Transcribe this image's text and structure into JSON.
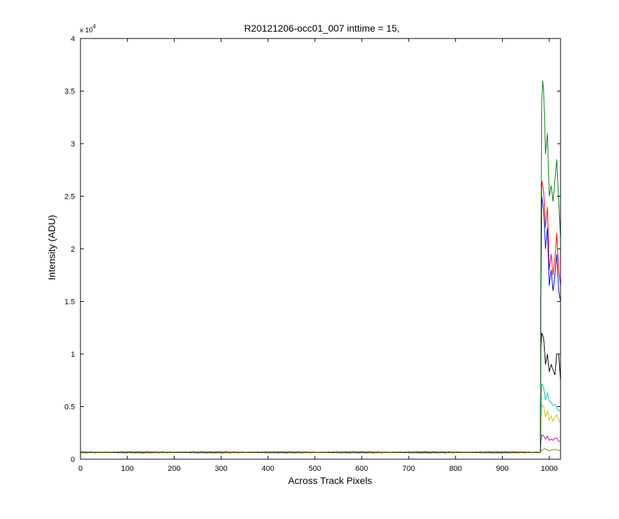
{
  "chart_data": {
    "type": "line",
    "title": "R20121206-occ01_007 inttime = 15,",
    "xlabel": "Across Track Pixels",
    "ylabel": "Intensity (ADU)",
    "y_exponent_label": "x 10",
    "y_exponent_power": "4",
    "xlim": [
      0,
      1024
    ],
    "ylim": [
      0,
      40000
    ],
    "x_ticks": [
      0,
      100,
      200,
      300,
      400,
      500,
      600,
      700,
      800,
      900,
      1000
    ],
    "y_ticks": [
      0,
      5000,
      10000,
      15000,
      20000,
      25000,
      30000,
      35000,
      40000
    ],
    "y_tick_labels": [
      "0",
      "0.5",
      "1",
      "1.5",
      "2",
      "2.5",
      "3",
      "3.5",
      "4"
    ],
    "grid": false,
    "baseline": 650,
    "step_start_x": 980,
    "series": [
      {
        "color": "#000000",
        "points": [
          [
            981,
            650
          ],
          [
            982,
            10500
          ],
          [
            984,
            12000
          ],
          [
            988,
            11500
          ],
          [
            992,
            9000
          ],
          [
            996,
            10000
          ],
          [
            1000,
            8300
          ],
          [
            1004,
            9000
          ],
          [
            1008,
            8500
          ],
          [
            1012,
            8000
          ],
          [
            1016,
            10000
          ],
          [
            1020,
            10000
          ],
          [
            1024,
            7500
          ]
        ]
      },
      {
        "color": "#00bfbf",
        "points": [
          [
            981,
            650
          ],
          [
            982,
            4000
          ],
          [
            984,
            7200
          ],
          [
            988,
            6800
          ],
          [
            992,
            5600
          ],
          [
            996,
            6300
          ],
          [
            1000,
            5500
          ],
          [
            1004,
            5400
          ],
          [
            1008,
            5100
          ],
          [
            1012,
            5200
          ],
          [
            1016,
            4900
          ],
          [
            1020,
            4600
          ],
          [
            1024,
            4600
          ]
        ]
      },
      {
        "color": "#bfbf00",
        "points": [
          [
            981,
            650
          ],
          [
            982,
            3000
          ],
          [
            984,
            5200
          ],
          [
            988,
            5000
          ],
          [
            992,
            4000
          ],
          [
            996,
            4600
          ],
          [
            1000,
            3700
          ],
          [
            1004,
            4100
          ],
          [
            1008,
            3600
          ],
          [
            1012,
            4000
          ],
          [
            1016,
            4200
          ],
          [
            1020,
            3700
          ],
          [
            1024,
            3400
          ]
        ]
      },
      {
        "color": "#bf00bf",
        "points": [
          [
            981,
            650
          ],
          [
            982,
            1600
          ],
          [
            984,
            2300
          ],
          [
            988,
            2200
          ],
          [
            992,
            1900
          ],
          [
            996,
            2200
          ],
          [
            1000,
            1800
          ],
          [
            1004,
            1900
          ],
          [
            1008,
            1800
          ],
          [
            1012,
            2000
          ],
          [
            1016,
            2000
          ],
          [
            1020,
            1700
          ],
          [
            1024,
            1700
          ]
        ]
      },
      {
        "color": "#ff0000",
        "points": [
          [
            981,
            650
          ],
          [
            982,
            16000
          ],
          [
            984,
            26500
          ],
          [
            988,
            25500
          ],
          [
            992,
            22000
          ],
          [
            996,
            24000
          ],
          [
            1000,
            18000
          ],
          [
            1004,
            19500
          ],
          [
            1008,
            17500
          ],
          [
            1012,
            19000
          ],
          [
            1016,
            21500
          ],
          [
            1020,
            18000
          ],
          [
            1024,
            16500
          ]
        ]
      },
      {
        "color": "#0000ff",
        "points": [
          [
            981,
            650
          ],
          [
            982,
            15000
          ],
          [
            984,
            25000
          ],
          [
            988,
            23500
          ],
          [
            992,
            20000
          ],
          [
            996,
            22000
          ],
          [
            1000,
            16500
          ],
          [
            1004,
            18000
          ],
          [
            1008,
            16000
          ],
          [
            1012,
            17500
          ],
          [
            1016,
            19500
          ],
          [
            1020,
            16000
          ],
          [
            1024,
            15000
          ]
        ]
      },
      {
        "color": "#007f00",
        "points": [
          [
            981,
            650
          ],
          [
            982,
            20000
          ],
          [
            984,
            34000
          ],
          [
            986,
            36000
          ],
          [
            988,
            35000
          ],
          [
            992,
            29000
          ],
          [
            996,
            31000
          ],
          [
            1000,
            25000
          ],
          [
            1004,
            26000
          ],
          [
            1008,
            24500
          ],
          [
            1012,
            26500
          ],
          [
            1016,
            28500
          ],
          [
            1020,
            24500
          ],
          [
            1024,
            21000
          ]
        ]
      },
      {
        "color": "#7f7f00",
        "points": [
          [
            981,
            650
          ],
          [
            982,
            800
          ],
          [
            990,
            1000
          ],
          [
            1000,
            800
          ],
          [
            1010,
            950
          ],
          [
            1024,
            800
          ]
        ]
      }
    ]
  }
}
